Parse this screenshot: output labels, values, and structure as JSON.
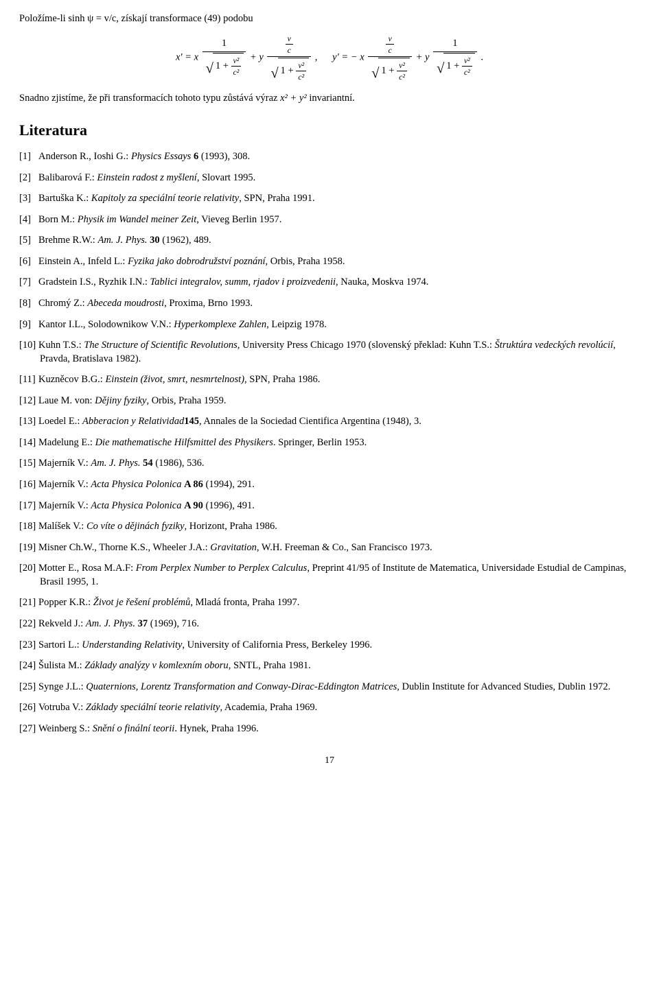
{
  "intro_line": "Položíme-li sinh ψ = v/c, získají transformace (49) podobu",
  "conclusion_line_a": "Snadno zjistíme, že při transformacích tohoto typu zůstává výraz ",
  "conclusion_line_b": " invariantní.",
  "invariant_expr": "x² + y²",
  "lit_heading": "Literatura",
  "eq": {
    "xprime": "x′ = x",
    "plus_y": " + y",
    "comma": ",",
    "yprime": "y′ = − x",
    "dot": ".",
    "one": "1",
    "v": "v",
    "c": "c",
    "v2": "v²",
    "c2": "c²",
    "one_plus": "1 + "
  },
  "refs": [
    {
      "pre": "Anderson R., Ioshi G.: ",
      "ital": "Physics Essays",
      "mid": " ",
      "bold": "6",
      "post": " (1993), 308."
    },
    {
      "pre": "Balibarová F.: ",
      "ital": "Einstein radost z myšlení",
      "post": ", Slovart 1995."
    },
    {
      "pre": "Bartuška K.: ",
      "ital": "Kapitoly za speciální teorie relativity",
      "post": ", SPN, Praha 1991."
    },
    {
      "pre": "Born M.: ",
      "ital": "Physik im Wandel meiner Zeit",
      "post": ", Vieveg Berlin 1957."
    },
    {
      "pre": "Brehme R.W.: ",
      "ital": "Am. J. Phys.",
      "mid": " ",
      "bold": "30",
      "post": " (1962), 489."
    },
    {
      "pre": "Einstein A., Infeld L.: ",
      "ital": "Fyzika jako dobrodružství poznání",
      "post": ", Orbis, Praha 1958."
    },
    {
      "pre": "Gradstein I.S., Ryzhik I.N.: ",
      "ital": "Tablici integralov, summ, rjadov i proizvedenii",
      "post": ", Nauka, Moskva 1974."
    },
    {
      "pre": "Chromý Z.: ",
      "ital": "Abeceda moudrosti",
      "post": ", Proxima, Brno 1993."
    },
    {
      "pre": "Kantor I.L., Solodownikow V.N.: ",
      "ital": "Hyperkomplexe Zahlen",
      "post": ", Leipzig 1978."
    },
    {
      "pre": "Kuhn T.S.: ",
      "ital": "The Structure of Scientific Revolutions",
      "post": ", University Press Chicago 1970 (slovenský překlad: Kuhn T.S.: ",
      "ital2": "Štruktúra vedeckých revolúcií",
      "post2": ", Pravda, Bratislava 1982)."
    },
    {
      "pre": "Kuzněcov B.G.: ",
      "ital": "Einstein (život, smrt, nesmrtelnost)",
      "post": ", SPN, Praha 1986."
    },
    {
      "pre": "Laue M. von: ",
      "ital": "Dějiny fyziky",
      "post": ", Orbis, Praha 1959."
    },
    {
      "pre": "Loedel E.: ",
      "ital": "Abberacion y Relatividad",
      "post": ", Annales de la Sociedad Cientifica Argentina ",
      "bold": "145",
      "post2": " (1948), 3."
    },
    {
      "pre": "Madelung E.: ",
      "ital": "Die mathematische Hilfsmittel des Physikers",
      "post": ". Springer, Berlin 1953."
    },
    {
      "pre": "Majerník V.: ",
      "ital": "Am. J. Phys.",
      "mid": " ",
      "bold": "54",
      "post": " (1986), 536."
    },
    {
      "pre": "Majerník V.: ",
      "ital": "Acta Physica Polonica",
      "mid": " ",
      "bold": "A 86",
      "post": " (1994), 291."
    },
    {
      "pre": "Majerník V.: ",
      "ital": "Acta Physica Polonica",
      "mid": " ",
      "bold": "A 90",
      "post": " (1996), 491."
    },
    {
      "pre": "Malíšek V.: ",
      "ital": "Co víte o dějinách fyziky",
      "post": ", Horizont, Praha 1986."
    },
    {
      "pre": "Misner Ch.W., Thorne K.S., Wheeler J.A.: ",
      "ital": "Gravitation",
      "post": ", W.H. Freeman & Co., San Francisco 1973."
    },
    {
      "pre": "Motter E., Rosa M.A.F: ",
      "ital": "From Perplex Number to Perplex Calculus",
      "post": ", Preprint 41/95 of Institute de Matematica, Universidade Estudial de Campinas, Brasil 1995, 1."
    },
    {
      "pre": "Popper K.R.: ",
      "ital": "Život je řešení problémů",
      "post": ", Mladá fronta, Praha 1997."
    },
    {
      "pre": "Rekveld J.: ",
      "ital": "Am. J. Phys.",
      "mid": " ",
      "bold": "37",
      "post": " (1969), 716."
    },
    {
      "pre": "Sartori L.: ",
      "ital": "Understanding Relativity",
      "post": ", University of California Press, Berkeley 1996."
    },
    {
      "pre": "Šulista M.: ",
      "ital": "Základy analýzy v komlexním oboru",
      "post": ", SNTL, Praha 1981."
    },
    {
      "pre": "Synge J.L.: ",
      "ital": "Quaternions, Lorentz Transformation and Conway-Dirac-Eddington Matrices",
      "post": ", Dublin Institute for Advanced Studies, Dublin 1972."
    },
    {
      "pre": "Votruba V.: ",
      "ital": "Základy speciální teorie relativity",
      "post": ", Academia, Praha 1969."
    },
    {
      "pre": "Weinberg S.: ",
      "ital": "Snění o finální teorii",
      "post": ". Hynek, Praha 1996."
    }
  ],
  "page_number": "17"
}
